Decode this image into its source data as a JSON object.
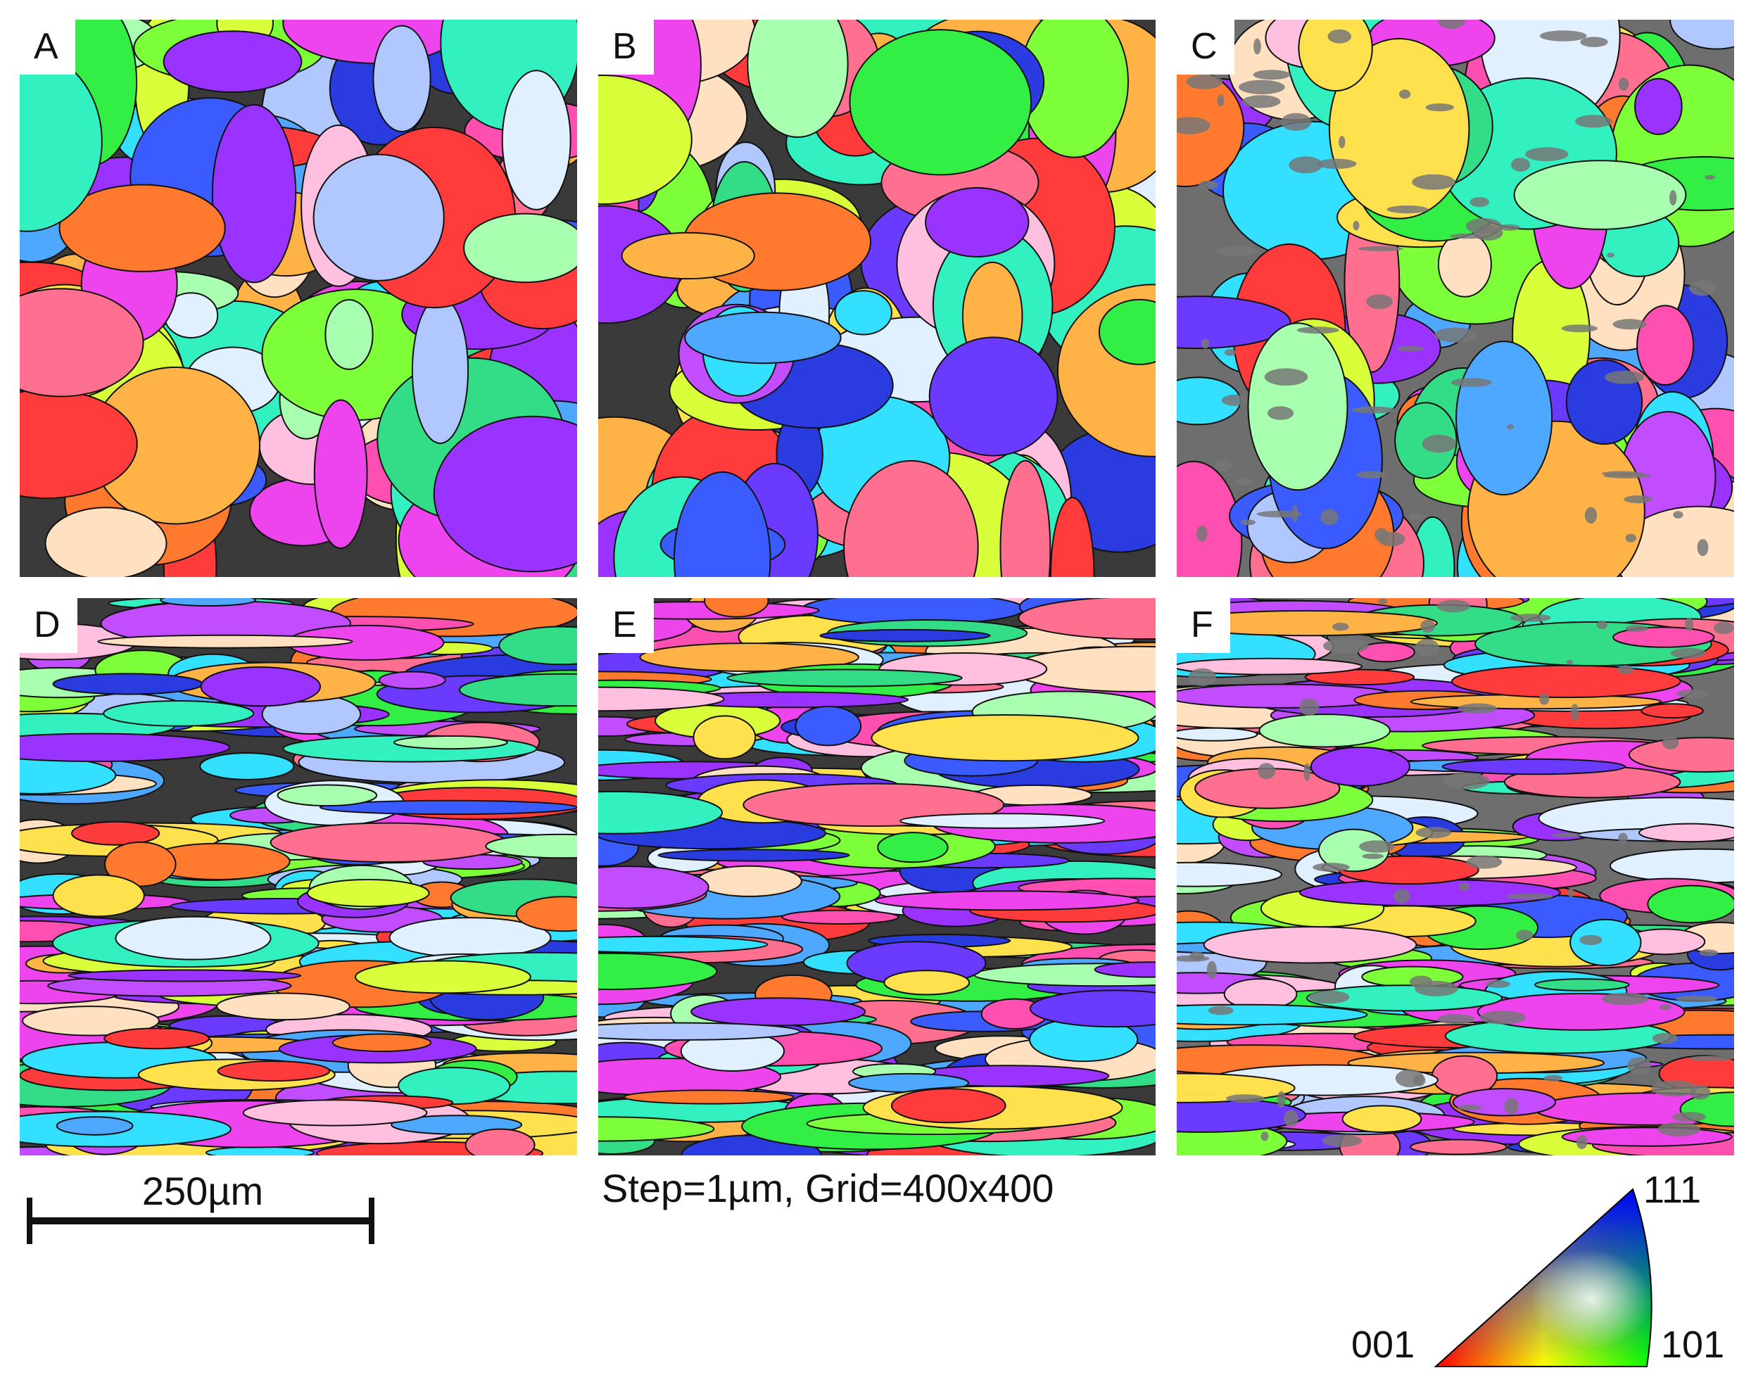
{
  "panels": [
    {
      "id": "A",
      "label": "A",
      "style": "equiaxed",
      "seed": 11
    },
    {
      "id": "B",
      "label": "B",
      "style": "equiaxed",
      "seed": 23
    },
    {
      "id": "C",
      "label": "C",
      "style": "equiaxed-gray",
      "seed": 37
    },
    {
      "id": "D",
      "label": "D",
      "style": "elongated",
      "seed": 41
    },
    {
      "id": "E",
      "label": "E",
      "style": "elongated",
      "seed": 53
    },
    {
      "id": "F",
      "label": "F",
      "style": "elongated-gray",
      "seed": 67
    }
  ],
  "scale_bar": {
    "label": "250µm"
  },
  "acquisition": {
    "text": "Step=1µm, Grid=400x400"
  },
  "ipf_key": {
    "corner_111": "111",
    "corner_001": "001",
    "corner_101": "101",
    "colors": {
      "001": "#ff0000",
      "101": "#00ff00",
      "111": "#0000ff"
    }
  },
  "grain_palette": [
    "#ff3b3b",
    "#ff7a2e",
    "#ffb347",
    "#ffe14d",
    "#d8ff3a",
    "#7dff3a",
    "#33ee44",
    "#33dd88",
    "#33f0c0",
    "#33e0ff",
    "#4fa8ff",
    "#3a5cff",
    "#2a3be0",
    "#6a3bff",
    "#9a33ff",
    "#c24dff",
    "#ee44ee",
    "#ff4fb0",
    "#ff6f8f",
    "#b0c8ff",
    "#e0f0ff",
    "#ffe0c0",
    "#ffc0e0",
    "#a8ffb0"
  ]
}
